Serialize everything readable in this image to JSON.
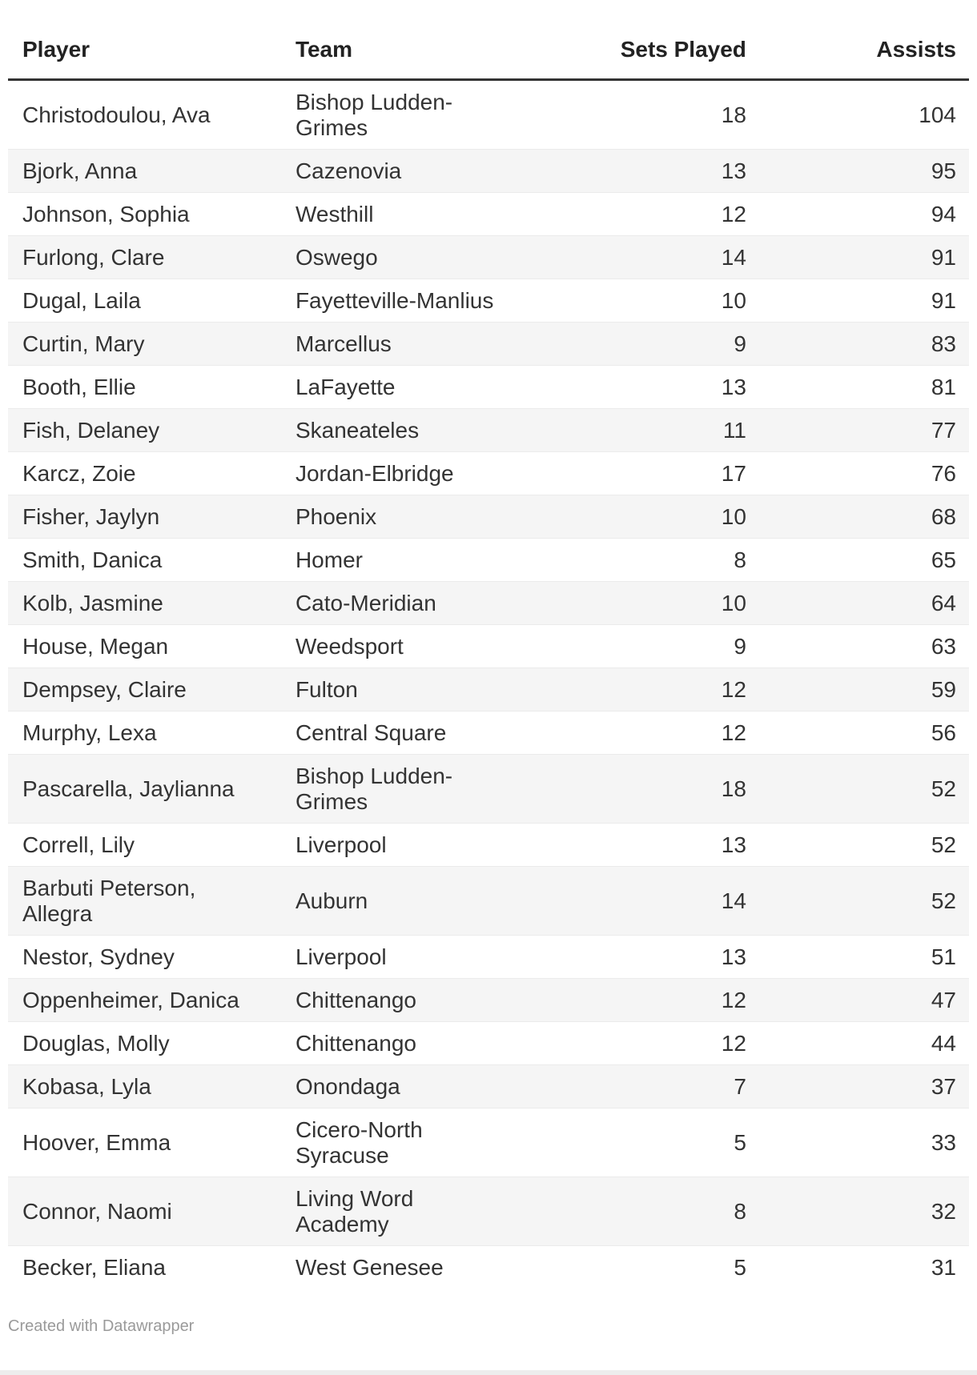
{
  "chart_data": {
    "type": "table",
    "columns": [
      "Player",
      "Team",
      "Sets Played",
      "Assists"
    ],
    "column_align": [
      "left",
      "left",
      "right",
      "right"
    ],
    "rows": [
      [
        "Christodoulou, Ava",
        "Bishop Ludden-\nGrimes",
        18,
        104
      ],
      [
        "Bjork, Anna",
        "Cazenovia",
        13,
        95
      ],
      [
        "Johnson, Sophia",
        "Westhill",
        12,
        94
      ],
      [
        "Furlong, Clare",
        "Oswego",
        14,
        91
      ],
      [
        "Dugal, Laila",
        "Fayetteville-Manlius",
        10,
        91
      ],
      [
        "Curtin, Mary",
        "Marcellus",
        9,
        83
      ],
      [
        "Booth, Ellie",
        "LaFayette",
        13,
        81
      ],
      [
        "Fish, Delaney",
        "Skaneateles",
        11,
        77
      ],
      [
        "Karcz, Zoie",
        "Jordan-Elbridge",
        17,
        76
      ],
      [
        "Fisher, Jaylyn",
        "Phoenix",
        10,
        68
      ],
      [
        "Smith, Danica",
        "Homer",
        8,
        65
      ],
      [
        "Kolb, Jasmine",
        "Cato-Meridian",
        10,
        64
      ],
      [
        "House, Megan",
        "Weedsport",
        9,
        63
      ],
      [
        "Dempsey, Claire",
        "Fulton",
        12,
        59
      ],
      [
        "Murphy, Lexa",
        "Central Square",
        12,
        56
      ],
      [
        "Pascarella, Jaylianna",
        "Bishop Ludden-\nGrimes",
        18,
        52
      ],
      [
        "Correll, Lily",
        "Liverpool",
        13,
        52
      ],
      [
        "Barbuti Peterson,\nAllegra",
        "Auburn",
        14,
        52
      ],
      [
        "Nestor, Sydney",
        "Liverpool",
        13,
        51
      ],
      [
        "Oppenheimer, Danica",
        "Chittenango",
        12,
        47
      ],
      [
        "Douglas, Molly",
        "Chittenango",
        12,
        44
      ],
      [
        "Kobasa, Lyla",
        "Onondaga",
        7,
        37
      ],
      [
        "Hoover, Emma",
        "Cicero-North\nSyracuse",
        5,
        33
      ],
      [
        "Connor, Naomi",
        "Living Word\nAcademy",
        8,
        32
      ],
      [
        "Becker, Eliana",
        "West Genesee",
        5,
        31
      ]
    ],
    "title": "",
    "layout": {
      "zebra_stripe_color": "#f5f5f5",
      "header_rule_color": "#333333",
      "row_rule_color": "#ebebeb",
      "body_text_color": "#333333",
      "header_text_color": "#222222",
      "footer_text_color": "#9a9a9a"
    }
  },
  "footer": {
    "credit_prefix": "Created with ",
    "credit_link": "Datawrapper"
  }
}
